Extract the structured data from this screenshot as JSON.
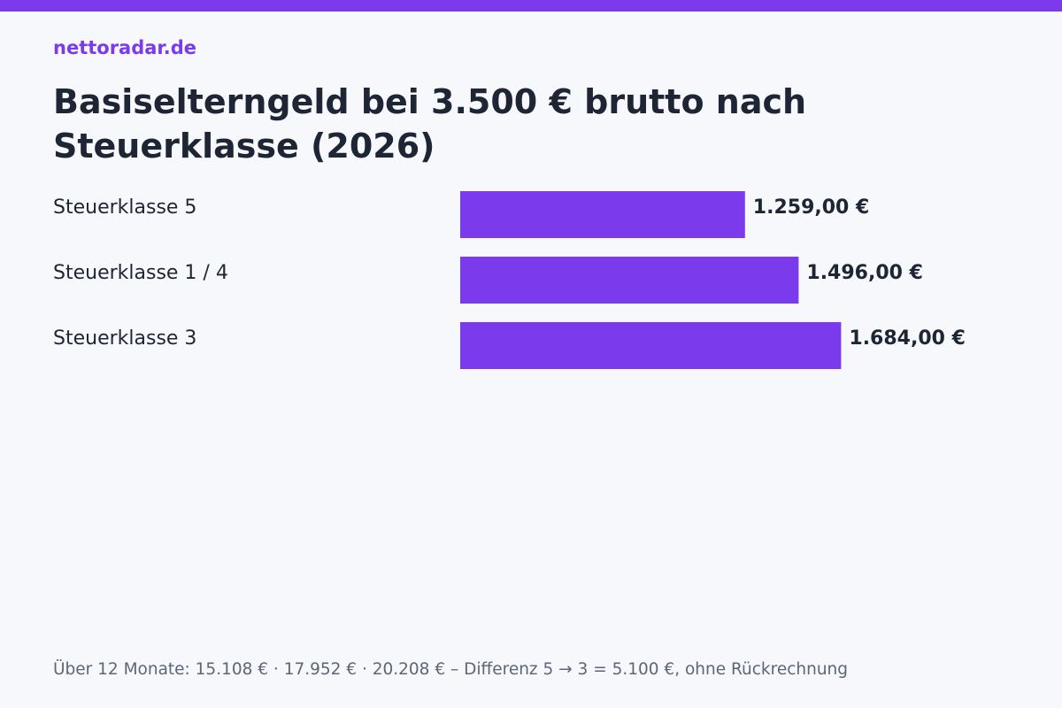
{
  "brand": "nettoradar.de",
  "colors": {
    "accent": "#7c3aed",
    "text": "#1e2535",
    "muted": "#5d6677",
    "background": "#f7f8fc"
  },
  "footnote": "Über 12 Monate: 15.108 € · 17.952 € · 20.208 € – Differenz 5 → 3 = 5.100 €, ohne Rückrechnung",
  "chart_data": {
    "type": "bar",
    "orientation": "horizontal",
    "title": "Basiselterngeld bei 3.500 € brutto nach Steuerklasse (2026)",
    "categories": [
      "Steuerklasse 5",
      "Steuerklasse 1 / 4",
      "Steuerklasse 3"
    ],
    "values": [
      1259,
      1496,
      1684
    ],
    "value_labels": [
      "1.259,00 €",
      "1.496,00 €",
      "1.684,00 €"
    ],
    "unit": "€",
    "xlim": [
      0,
      1800
    ],
    "grid": false,
    "legend": "none"
  }
}
